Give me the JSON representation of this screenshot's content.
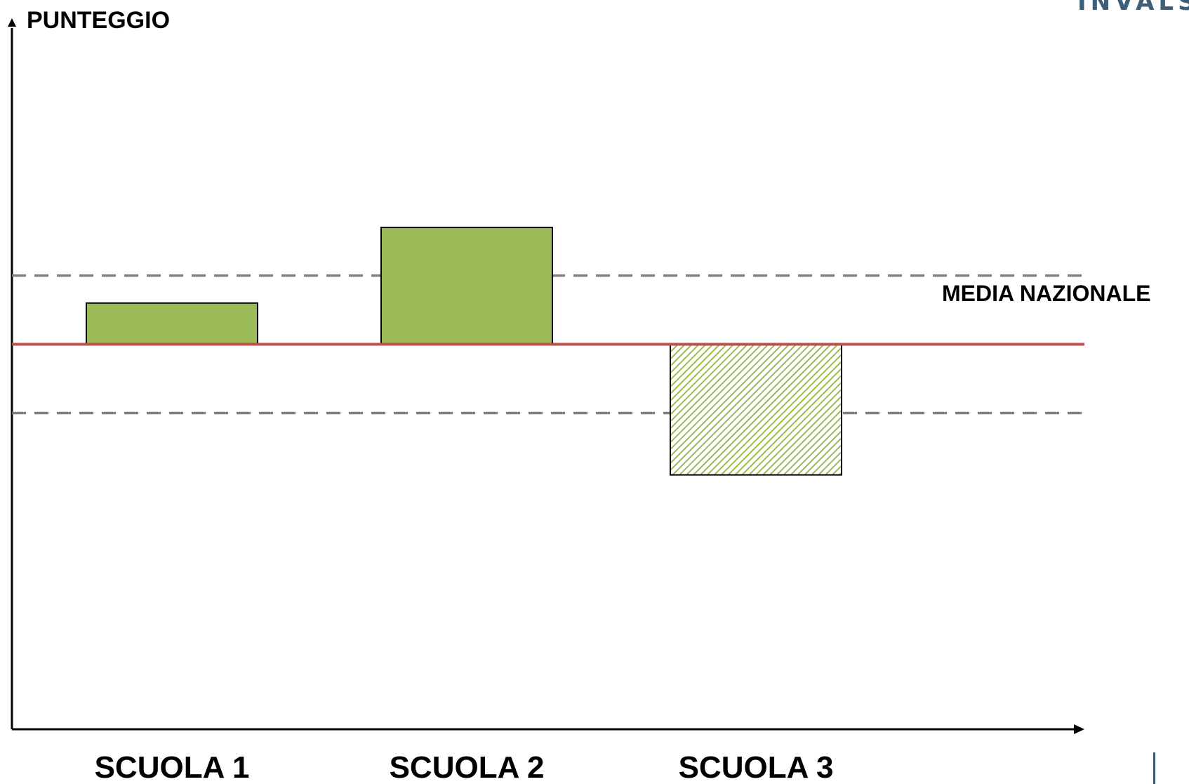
{
  "chart_data": {
    "type": "bar",
    "title": "",
    "ylabel": "PUNTEGGIO",
    "xlabel": "",
    "categories": [
      "SCUOLA 1",
      "SCUOLA 2",
      "SCUOLA 3"
    ],
    "values": [
      0.3,
      0.85,
      -0.95
    ],
    "ylim": [
      -2.8,
      2.3
    ],
    "baseline": {
      "label": "MEDIA NAZIONALE",
      "value": 0,
      "color": "#c0504d"
    },
    "bands": [
      0.5,
      -0.5
    ],
    "band_color": "#7f7f7f",
    "bar_color": "#9bbb59",
    "bar_styles": [
      "solid",
      "solid",
      "hatched"
    ],
    "grid": false
  },
  "logo": {
    "text": "INVALSI",
    "color": "#3d5f78"
  },
  "accent_color": "#1f5f9a"
}
